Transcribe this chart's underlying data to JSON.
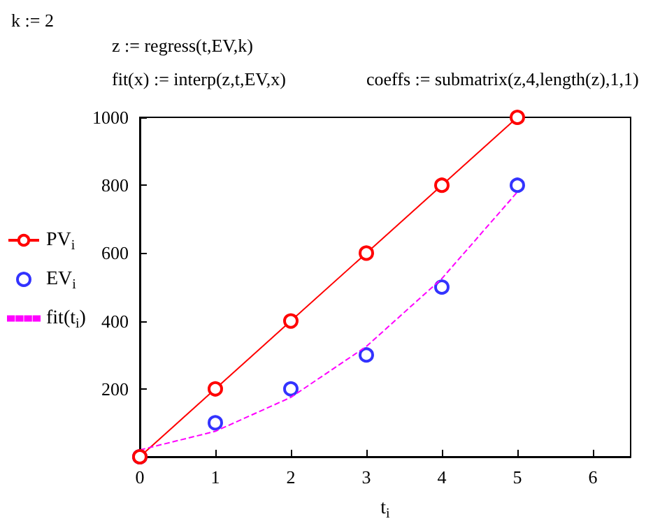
{
  "chart_data": {
    "type": "line",
    "xlabel": "t$_{i}$",
    "annotations": [
      "k := 2",
      "z := regress(t,EV,k)",
      "fit(x) := interp(z,t,EV,x)",
      "coeffs := submatrix(z,4,length(z),1,1)"
    ],
    "x": [
      0,
      1,
      2,
      3,
      4,
      5
    ],
    "series": [
      {
        "name": "PV$_{i}$",
        "color": "#ff0000",
        "marker": "circle",
        "line_style": "solid",
        "values": [
          0,
          200,
          400,
          600,
          800,
          1000
        ]
      },
      {
        "name": "EV$_{i}$",
        "type": "scatter",
        "color": "#0000ff",
        "marker": "circle",
        "values": [
          0,
          100,
          200,
          300,
          500,
          800
        ]
      },
      {
        "name": "fit(t$_{i}$)",
        "color": "#ff00ff",
        "marker": "none",
        "line_style": "dashed",
        "values": [
          20,
          75,
          175,
          325,
          525,
          780
        ]
      }
    ],
    "xlim": [
      0,
      6.5
    ],
    "xticks": [
      0,
      1,
      2,
      3,
      4,
      5,
      6
    ],
    "ylim": [
      0,
      1000
    ],
    "yticks": [
      200,
      400,
      600,
      800,
      1000
    ],
    "grid": false,
    "legend": "left"
  }
}
